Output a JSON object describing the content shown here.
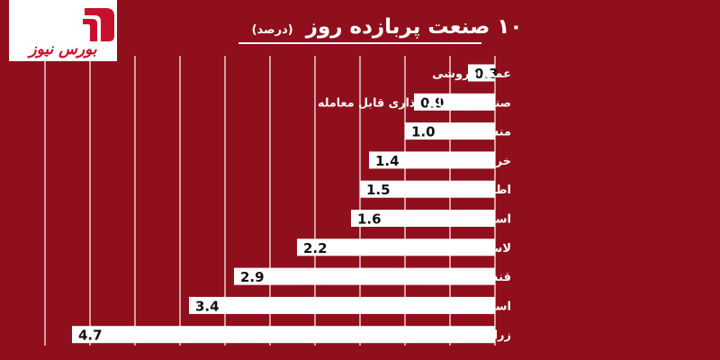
{
  "header": {
    "logo_text": "بورس نیوز",
    "title": "۱۰ صنعت پربازده روز",
    "unit": "(درصد)"
  },
  "colors": {
    "background": "#8f0f1c",
    "bar": "#ffffff",
    "grid": "#ffffff",
    "logo_red": "#c8102e"
  },
  "chart_data": {
    "type": "bar",
    "orientation": "horizontal",
    "direction": "right-to-left",
    "title": "۱۰ صنعت پربازده روز",
    "unit": "(درصد)",
    "categories": [
      "عمده فروشی",
      "صندوق سرمایه گذاری قابل معامله",
      "منسوجات",
      "خرده فروشی",
      "اطلاعات و ارتباطات",
      "استخراج سایر معادن",
      "لاستیک و پلاستیک",
      "قند و شکر",
      "استخراج نفت گاز جز اکتشاف",
      "زراعت"
    ],
    "values": [
      0.3,
      0.9,
      1.0,
      1.4,
      1.5,
      1.6,
      2.2,
      2.9,
      3.4,
      4.7
    ],
    "labels": [
      "0.3",
      "0.9",
      "1.0",
      "1.4",
      "1.5",
      "1.6",
      "2.2",
      "2.9",
      "3.4",
      "4.7"
    ],
    "xlim": [
      0,
      5
    ],
    "grid": true,
    "legend": "none"
  }
}
